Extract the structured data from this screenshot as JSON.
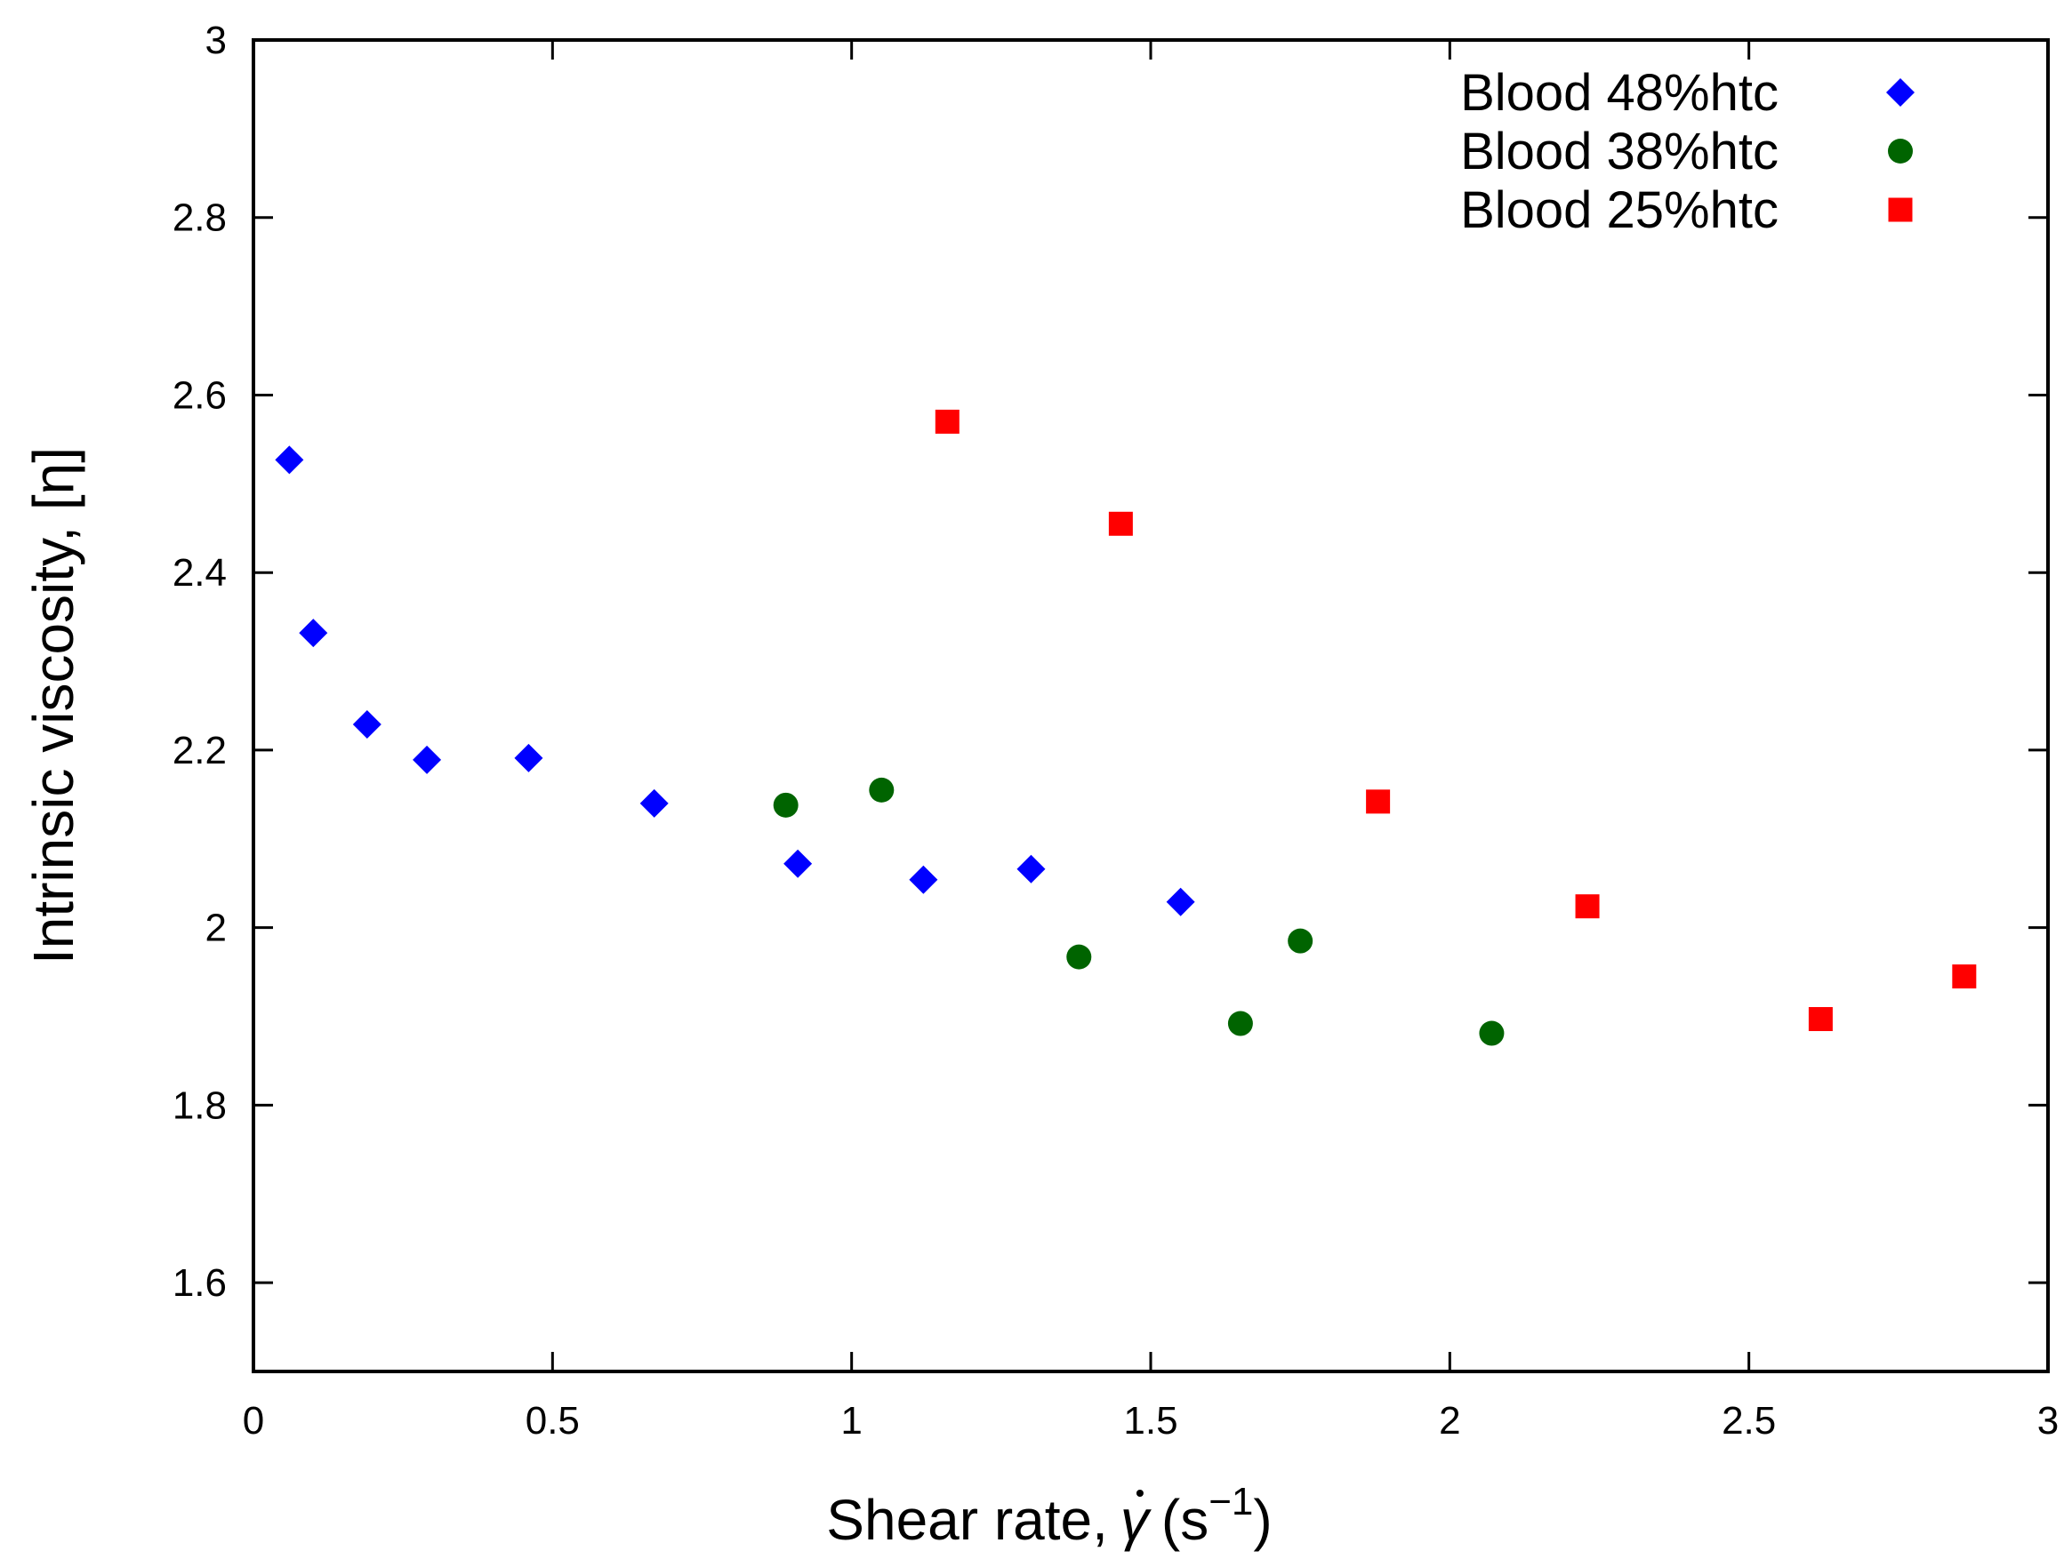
{
  "chart_data": {
    "type": "scatter",
    "title": "",
    "xlabel_prefix": "Shear rate,",
    "xlabel_symbol": "γ",
    "xlabel_open": "(s",
    "xlabel_exponent": "−1",
    "xlabel_close": ")",
    "ylabel": "Intrinsic viscosity, [η]",
    "xlim": [
      0,
      3
    ],
    "ylim": [
      1.5,
      3
    ],
    "xticks": [
      0,
      0.5,
      1,
      1.5,
      2,
      2.5,
      3
    ],
    "xtick_labels": [
      "0",
      "0.5",
      "1",
      "1.5",
      "2",
      "2.5",
      "3"
    ],
    "yticks": [
      1.6,
      1.8,
      2,
      2.2,
      2.4,
      2.6,
      2.8,
      3
    ],
    "ytick_labels": [
      "1.6",
      "1.8",
      "2",
      "2.2",
      "2.4",
      "2.6",
      "2.8",
      "3"
    ],
    "grid": false,
    "legend_position": "top-right",
    "series": [
      {
        "name": "Blood 48%htc",
        "marker": "diamond",
        "color": "#0000ff",
        "x": [
          0.06,
          0.1,
          0.19,
          0.29,
          0.46,
          0.67,
          0.91,
          1.12,
          1.3,
          1.55
        ],
        "y": [
          2.527,
          2.332,
          2.229,
          2.189,
          2.191,
          2.14,
          2.072,
          2.054,
          2.066,
          2.029
        ]
      },
      {
        "name": "Blood 38%htc",
        "marker": "circle",
        "color": "#006400",
        "x": [
          0.89,
          1.05,
          1.38,
          1.65,
          1.75,
          2.07
        ],
        "y": [
          2.138,
          2.155,
          1.967,
          1.892,
          1.985,
          1.881
        ]
      },
      {
        "name": "Blood 25%htc",
        "marker": "square",
        "color": "#ff0000",
        "x": [
          1.16,
          1.45,
          1.88,
          2.23,
          2.62,
          2.86
        ],
        "y": [
          2.57,
          2.455,
          2.142,
          2.024,
          1.897,
          1.945
        ]
      }
    ]
  }
}
